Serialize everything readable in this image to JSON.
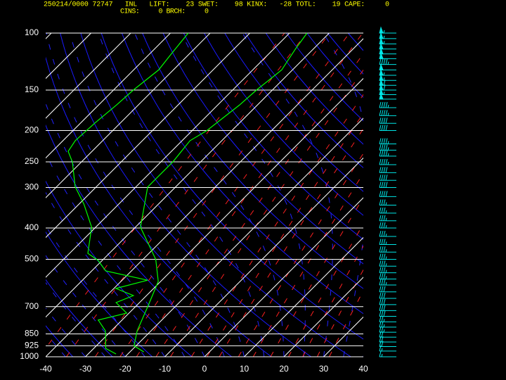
{
  "header": {
    "line1": "250214/0000 72747   INL   LIFT:    23 SWET:    98 KINX:   -28 TOTL:    19 CAPE:     0",
    "line2": "CINS:     0 BRCH:     0"
  },
  "chart_data": {
    "type": "skewt",
    "ylog": true,
    "ylim": [
      1000,
      100
    ],
    "yticks": [
      100,
      150,
      200,
      250,
      300,
      400,
      500,
      700,
      850,
      925,
      1000
    ],
    "xlim": [
      -40,
      40
    ],
    "xticks": [
      -40,
      -30,
      -20,
      -10,
      0,
      10,
      20,
      30,
      40
    ],
    "series": [
      {
        "color": "#00ff00",
        "x": [
          -16.5,
          -20.5,
          -23.5,
          -27,
          -30.6,
          -36.8,
          -48.7,
          -57,
          -57,
          -57,
          -58,
          -56.3,
          -54.5,
          -54,
          -52.7,
          -54.5,
          -55.6
        ],
        "values": [
          966,
          925,
          831,
          697,
          585,
          500,
          398,
          299,
          276,
          250,
          215,
          200,
          167,
          150,
          130,
          112,
          100
        ]
      },
      {
        "color": "#00ff00",
        "x": [
          -23,
          -27,
          -31.5,
          -36,
          -30.6,
          -35.9,
          -33.3,
          -39.5,
          -33.6,
          -46.5,
          -51,
          -55.4,
          -61,
          -68.7,
          -75.4,
          -82.3,
          -86,
          -86.9,
          -86.4,
          -85.5,
          -85,
          -83.7,
          -84.6,
          -85.5
        ],
        "values": [
          980,
          942,
          831,
          770,
          733,
          680,
          647,
          615,
          580,
          543,
          504,
          479,
          398,
          338,
          298,
          250,
          232,
          215,
          190,
          167,
          150,
          130,
          115,
          100
        ]
      }
    ],
    "winds": {
      "color": "#00e5e5",
      "pressure": [
        100,
        104,
        108,
        112,
        116,
        120,
        125,
        130,
        135,
        140,
        145,
        150,
        155,
        160,
        170,
        180,
        190,
        200,
        220,
        230,
        240,
        255,
        270,
        285,
        300,
        320,
        340,
        360,
        380,
        400,
        425,
        450,
        475,
        500,
        525,
        550,
        575,
        600,
        630,
        660,
        690,
        720,
        750,
        780,
        810,
        840,
        870,
        900,
        930,
        960,
        1000
      ],
      "speed": [
        55,
        55,
        55,
        50,
        50,
        50,
        45,
        50,
        55,
        55,
        60,
        60,
        55,
        50,
        45,
        45,
        40,
        40,
        45,
        45,
        45,
        45,
        40,
        40,
        40,
        40,
        35,
        35,
        35,
        35,
        35,
        35,
        35,
        35,
        35,
        35,
        35,
        35,
        30,
        30,
        30,
        30,
        30,
        25,
        25,
        25,
        20,
        20,
        20,
        15,
        15
      ]
    }
  }
}
